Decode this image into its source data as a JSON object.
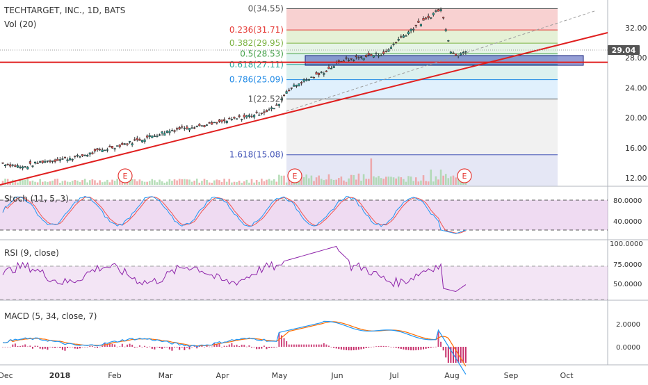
{
  "header": {
    "title": "TECHTARGET, INC., 1D, BATS",
    "vol_label": "Vol (20)"
  },
  "price_axis": {
    "ticks": [
      "32.00",
      "28.00",
      "24.00",
      "20.00",
      "16.00",
      "12.00"
    ],
    "current_price": "29.04"
  },
  "fibonacci": [
    {
      "label": "0(34.55)",
      "color": "#555555"
    },
    {
      "label": "0.236(31.71)",
      "color": "#e53935"
    },
    {
      "label": "0.382(29.95)",
      "color": "#7cb342"
    },
    {
      "label": "0.5(28.53)",
      "color": "#43a047"
    },
    {
      "label": "0.618(27.11)",
      "color": "#26a69a"
    },
    {
      "label": "0.786(25.09)",
      "color": "#1e88e5"
    },
    {
      "label": "1(22.52)",
      "color": "#555555"
    },
    {
      "label": "1.618(15.08)",
      "color": "#3f51b5"
    }
  ],
  "earnings_marker": "E",
  "stoch": {
    "label": "Stoch (11, 5, 3)",
    "ticks": [
      "80.0000",
      "40.0000"
    ]
  },
  "rsi": {
    "label": "RSI (9, close)",
    "ticks": [
      "100.0000",
      "75.0000",
      "50.0000"
    ]
  },
  "macd": {
    "label": "MACD (5, 34, close, 7)",
    "ticks": [
      "2.0000",
      "0.0000"
    ]
  },
  "time_axis": [
    "Dec",
    "2018",
    "Feb",
    "Mar",
    "Apr",
    "May",
    "Jun",
    "Jul",
    "Aug",
    "Sep",
    "Oct"
  ],
  "colors": {
    "up": "#26a69a",
    "down": "#ef5350",
    "trendline": "#e01f1f",
    "stoch_k": "#2196f3",
    "stoch_d": "#ef5350",
    "rsi": "#8e24aa",
    "macd": "#2196f3",
    "signal": "#ff6d00",
    "price_badge": "#555555"
  },
  "chart_data": {
    "type": "candlestick",
    "title": "TECHTARGET, INC., 1D, BATS",
    "x_labels": [
      "Dec",
      "2018",
      "Feb",
      "Mar",
      "Apr",
      "May",
      "Jun",
      "Jul",
      "Aug",
      "Sep",
      "Oct"
    ],
    "ylim": [
      10.5,
      35.5
    ],
    "close_keypoints": [
      {
        "date": "Dec",
        "close": 14.0
      },
      {
        "date": "2018",
        "close": 14.5
      },
      {
        "date": "Feb",
        "close": 15.8
      },
      {
        "date": "Mar",
        "close": 17.8
      },
      {
        "date": "Apr",
        "close": 19.0
      },
      {
        "date": "May",
        "close": 20.5
      },
      {
        "date": "May (mid)",
        "close": 24.2
      },
      {
        "date": "Jun",
        "close": 27.6
      },
      {
        "date": "Jul",
        "close": 28.5
      },
      {
        "date": "Jul (late)",
        "close": 34.3
      },
      {
        "date": "Aug",
        "close": 28.5
      },
      {
        "date": "Aug (last)",
        "close": 29.04
      }
    ],
    "fib_levels": [
      {
        "ratio": 0,
        "price": 34.55
      },
      {
        "ratio": 0.236,
        "price": 31.71
      },
      {
        "ratio": 0.382,
        "price": 29.95
      },
      {
        "ratio": 0.5,
        "price": 28.53
      },
      {
        "ratio": 0.618,
        "price": 27.11
      },
      {
        "ratio": 0.786,
        "price": 25.09
      },
      {
        "ratio": 1,
        "price": 22.52
      },
      {
        "ratio": 1.618,
        "price": 15.08
      }
    ],
    "horizontal_line": 27.4,
    "zone": [
      27.0,
      28.3
    ],
    "stoch_levels": [
      80,
      20
    ],
    "rsi_band": [
      30,
      70
    ],
    "last_price": 29.04
  }
}
